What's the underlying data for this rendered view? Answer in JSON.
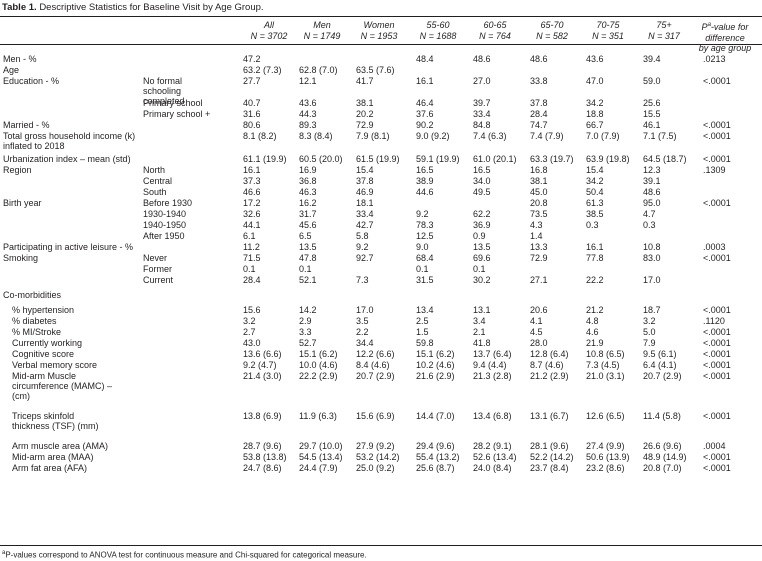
{
  "title_bold": "Table 1.",
  "title_text": "Descriptive Statistics for Baseline Visit by Age Group.",
  "headers": [
    {
      "line1": "All",
      "line2": "N = 3702"
    },
    {
      "line1": "Men",
      "line2": "N = 1749"
    },
    {
      "line1": "Women",
      "line2": "N = 1953"
    },
    {
      "line1": "55-60",
      "line2": "N = 1688"
    },
    {
      "line1": "60-65",
      "line2": "N = 764"
    },
    {
      "line1": "65-70",
      "line2": "N = 582"
    },
    {
      "line1": "70-75",
      "line2": "N = 351"
    },
    {
      "line1": "75+",
      "line2": "N = 317"
    },
    {
      "line1": "Pa-value for difference",
      "line2": "by age group"
    }
  ],
  "rows": [
    {
      "label": "Men - %",
      "sub": "",
      "values": [
        "47.2",
        "",
        "",
        "48.4",
        "48.6",
        "48.6",
        "43.6",
        "39.4",
        ".0213"
      ],
      "h": 11
    },
    {
      "label": "Age",
      "sub": "",
      "values": [
        "63.2 (7.3)",
        "62.8 (7.0)",
        "63.5 (7.6)",
        "",
        "",
        "",
        "",
        "",
        ""
      ],
      "h": 11
    },
    {
      "label": "Education - %",
      "sub": "No formal schooling completed",
      "values": [
        "27.7",
        "12.1",
        "41.7",
        "16.1",
        "27.0",
        "33.8",
        "47.0",
        "59.0",
        "<.0001"
      ],
      "h": 22
    },
    {
      "label": "",
      "sub": "Primary school",
      "values": [
        "40.7",
        "43.6",
        "38.1",
        "46.4",
        "39.7",
        "37.8",
        "34.2",
        "25.6",
        ""
      ],
      "h": 11
    },
    {
      "label": "",
      "sub": "Primary school +",
      "values": [
        "31.6",
        "44.3",
        "20.2",
        "37.6",
        "33.4",
        "28.4",
        "18.8",
        "15.5",
        ""
      ],
      "h": 11
    },
    {
      "label": "Married - %",
      "sub": "",
      "values": [
        "80.6",
        "89.3",
        "72.9",
        "90.2",
        "84.8",
        "74.7",
        "66.7",
        "46.1",
        "<.0001"
      ],
      "h": 11
    },
    {
      "label": "Total gross household income (k) inflated to 2018",
      "sub": "",
      "values": [
        "8.1 (8.2)",
        "8.3 (8.4)",
        "7.9 (8.1)",
        "9.0 (9.2)",
        "7.4 (6.3)",
        "7.4 (7.9)",
        "7.0 (7.9)",
        "7.1 (7.5)",
        "<.0001"
      ],
      "h": 23
    },
    {
      "label": "Urbanization index – mean (std)",
      "sub": "",
      "values": [
        "61.1 (19.9)",
        "60.5 (20.0)",
        "61.5 (19.9)",
        "59.1 (19.9)",
        "61.0 (20.1)",
        "63.3 (19.7)",
        "63.9 (19.8)",
        "64.5 (18.7)",
        "<.0001"
      ],
      "h": 11
    },
    {
      "label": "Region",
      "sub": "North",
      "values": [
        "16.1",
        "16.9",
        "15.4",
        "16.5",
        "16.5",
        "16.8",
        "15.4",
        "12.3",
        ".1309"
      ],
      "h": 11
    },
    {
      "label": "",
      "sub": "Central",
      "values": [
        "37.3",
        "36.8",
        "37.8",
        "38.9",
        "34.0",
        "38.1",
        "34.2",
        "39.1",
        ""
      ],
      "h": 11
    },
    {
      "label": "",
      "sub": "South",
      "values": [
        "46.6",
        "46.3",
        "46.9",
        "44.6",
        "49.5",
        "45.0",
        "50.4",
        "48.6",
        ""
      ],
      "h": 11
    },
    {
      "label": "Birth year",
      "sub": "Before 1930",
      "values": [
        "17.2",
        "16.2",
        "18.1",
        "",
        "",
        "20.8",
        "61.3",
        "95.0",
        "<.0001"
      ],
      "h": 11
    },
    {
      "label": "",
      "sub": "1930-1940",
      "values": [
        "32.6",
        "31.7",
        "33.4",
        "9.2",
        "62.2",
        "73.5",
        "38.5",
        "4.7",
        ""
      ],
      "h": 11
    },
    {
      "label": "",
      "sub": "1940-1950",
      "values": [
        "44.1",
        "45.6",
        "42.7",
        "78.3",
        "36.9",
        "4.3",
        "0.3",
        "0.3",
        ""
      ],
      "h": 11
    },
    {
      "label": "",
      "sub": "After 1950",
      "values": [
        "6.1",
        "6.5",
        "5.8",
        "12.5",
        "0.9",
        "1.4",
        "",
        "",
        ""
      ],
      "h": 11
    },
    {
      "label": "Participating in active leisure - %",
      "sub": "",
      "values": [
        "11.2",
        "13.5",
        "9.2",
        "9.0",
        "13.5",
        "13.3",
        "16.1",
        "10.8",
        ".0003"
      ],
      "h": 11
    },
    {
      "label": "Smoking",
      "sub": "Never",
      "values": [
        "71.5",
        "47.8",
        "92.7",
        "68.4",
        "69.6",
        "72.9",
        "77.8",
        "83.0",
        "<.0001"
      ],
      "h": 11
    },
    {
      "label": "",
      "sub": "Former",
      "values": [
        "0.1",
        "0.1",
        "",
        "0.1",
        "0.1",
        "",
        "",
        "",
        ""
      ],
      "h": 11
    },
    {
      "label": "",
      "sub": "Current",
      "values": [
        "28.4",
        "52.1",
        "7.3",
        "31.5",
        "30.2",
        "27.1",
        "22.2",
        "17.0",
        ""
      ],
      "h": 15
    },
    {
      "label": "Co-morbidities",
      "sub": "",
      "values": [
        "",
        "",
        "",
        "",
        "",
        "",
        "",
        "",
        ""
      ],
      "h": 15
    },
    {
      "label": "% hypertension",
      "sub": "",
      "indent": true,
      "values": [
        "15.6",
        "14.2",
        "17.0",
        "13.4",
        "13.1",
        "20.6",
        "21.2",
        "18.7",
        "<.0001"
      ],
      "h": 11
    },
    {
      "label": "% diabetes",
      "sub": "",
      "indent": true,
      "values": [
        "3.2",
        "2.9",
        "3.5",
        "2.5",
        "3.4",
        "4.1",
        "4.8",
        "3.2",
        ".1120"
      ],
      "h": 11
    },
    {
      "label": "% MI/Stroke",
      "sub": "",
      "indent": true,
      "values": [
        "2.7",
        "3.3",
        "2.2",
        "1.5",
        "2.1",
        "4.5",
        "4.6",
        "5.0",
        "<.0001"
      ],
      "h": 11
    },
    {
      "label": "Currently working",
      "sub": "",
      "indent": true,
      "values": [
        "43.0",
        "52.7",
        "34.4",
        "59.8",
        "41.8",
        "28.0",
        "21.9",
        "7.9",
        "<.0001"
      ],
      "h": 11
    },
    {
      "label": "Cognitive score",
      "sub": "",
      "indent": true,
      "values": [
        "13.6 (6.6)",
        "15.1 (6.2)",
        "12.2 (6.6)",
        "15.1 (6.2)",
        "13.7 (6.4)",
        "12.8 (6.4)",
        "10.8 (6.5)",
        "9.5 (6.1)",
        "<.0001"
      ],
      "h": 11
    },
    {
      "label": "Verbal memory score",
      "sub": "",
      "indent": true,
      "values": [
        "9.2 (4.7)",
        "10.0 (4.6)",
        "8.4 (4.6)",
        "10.2 (4.6)",
        "9.4 (4.4)",
        "8.7 (4.6)",
        "7.3 (4.5)",
        "6.4 (4.1)",
        "<.0001"
      ],
      "h": 11
    },
    {
      "label": "Mid-arm Muscle circumference (MAMC) – (cm)",
      "sub": "",
      "indent": true,
      "values": [
        "21.4 (3.0)",
        "22.2 (2.9)",
        "20.7 (2.9)",
        "21.6 (2.9)",
        "21.3 (2.8)",
        "21.2 (2.9)",
        "21.0 (3.1)",
        "20.7 (2.9)",
        "<.0001"
      ],
      "h": 40
    },
    {
      "label": "Triceps skinfold thickness (TSF) (mm)",
      "sub": "",
      "indent": true,
      "values": [
        "13.8 (6.9)",
        "11.9 (6.3)",
        "15.6 (6.9)",
        "14.4 (7.0)",
        "13.4 (6.8)",
        "13.1 (6.7)",
        "12.6 (6.5)",
        "11.4 (5.8)",
        "<.0001"
      ],
      "h": 30
    },
    {
      "label": "Arm muscle area (AMA)",
      "sub": "",
      "indent": true,
      "values": [
        "28.7 (9.6)",
        "29.7 (10.0)",
        "27.9 (9.2)",
        "29.4 (9.6)",
        "28.2 (9.1)",
        "28.1 (9.6)",
        "27.4 (9.9)",
        "26.6 (9.6)",
        ".0004"
      ],
      "h": 11
    },
    {
      "label": "Mid-arm area (MAA)",
      "sub": "",
      "indent": true,
      "values": [
        "53.8 (13.8)",
        "54.5 (13.4)",
        "53.2 (14.2)",
        "55.4 (13.2)",
        "52.6 (13.4)",
        "52.2 (14.2)",
        "50.6 (13.9)",
        "48.9 (14.9)",
        "<.0001"
      ],
      "h": 11
    },
    {
      "label": "Arm fat area (AFA)",
      "sub": "",
      "indent": true,
      "values": [
        "24.7 (8.6)",
        "24.4 (7.9)",
        "25.0 (9.2)",
        "25.6 (8.7)",
        "24.0 (8.4)",
        "23.7 (8.4)",
        "23.2 (8.6)",
        "20.8 (7.0)",
        "<.0001"
      ],
      "h": 11
    }
  ],
  "footnote_sup": "a",
  "footnote_text": "P-values correspond to ANOVA test for continuous measure and Chi-squared for categorical measure."
}
